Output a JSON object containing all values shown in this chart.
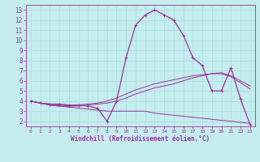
{
  "title": "",
  "xlabel": "Windchill (Refroidissement éolien,°C)",
  "ylabel": "",
  "bg_color": "#c5ecee",
  "line_color": "#993399",
  "xlim": [
    -0.5,
    23.5
  ],
  "ylim": [
    1.5,
    13.5
  ],
  "xticks": [
    0,
    1,
    2,
    3,
    4,
    5,
    6,
    7,
    8,
    9,
    10,
    11,
    12,
    13,
    14,
    15,
    16,
    17,
    18,
    19,
    20,
    21,
    22,
    23
  ],
  "yticks": [
    2,
    3,
    4,
    5,
    6,
    7,
    8,
    9,
    10,
    11,
    12,
    13
  ],
  "grid_color": "#aadddd",
  "line1_x": [
    0,
    1,
    2,
    3,
    4,
    5,
    6,
    7,
    8,
    9,
    10,
    11,
    12,
    13,
    14,
    15,
    16,
    17,
    18,
    19,
    20,
    21,
    22,
    23
  ],
  "line1_y": [
    4.0,
    3.8,
    3.7,
    3.7,
    3.6,
    3.6,
    3.5,
    3.3,
    2.0,
    4.0,
    8.3,
    11.5,
    12.5,
    13.0,
    12.5,
    12.0,
    10.5,
    8.3,
    7.5,
    5.0,
    5.0,
    7.3,
    4.2,
    1.7
  ],
  "line2_x": [
    0,
    1,
    2,
    3,
    4,
    5,
    6,
    7,
    8,
    9,
    10,
    11,
    12,
    13,
    14,
    15,
    16,
    17,
    18,
    19,
    20,
    21,
    22,
    23
  ],
  "line2_y": [
    4.0,
    3.8,
    3.7,
    3.6,
    3.5,
    3.5,
    3.6,
    3.7,
    3.8,
    4.0,
    4.3,
    4.7,
    5.0,
    5.3,
    5.5,
    5.7,
    6.0,
    6.3,
    6.5,
    6.7,
    6.8,
    6.5,
    6.0,
    5.5
  ],
  "line3_x": [
    0,
    1,
    2,
    3,
    4,
    5,
    6,
    7,
    8,
    9,
    10,
    11,
    12,
    13,
    14,
    15,
    16,
    17,
    18,
    19,
    20,
    21,
    22,
    23
  ],
  "line3_y": [
    4.0,
    3.8,
    3.6,
    3.5,
    3.4,
    3.3,
    3.2,
    3.1,
    3.0,
    3.0,
    3.0,
    3.0,
    3.0,
    2.8,
    2.7,
    2.6,
    2.5,
    2.4,
    2.3,
    2.2,
    2.1,
    2.0,
    1.9,
    1.8
  ],
  "line4_x": [
    0,
    1,
    2,
    3,
    4,
    5,
    6,
    7,
    8,
    9,
    10,
    11,
    12,
    13,
    14,
    15,
    16,
    17,
    18,
    19,
    20,
    21,
    22,
    23
  ],
  "line4_y": [
    4.0,
    3.8,
    3.6,
    3.5,
    3.5,
    3.6,
    3.7,
    3.8,
    4.0,
    4.3,
    4.7,
    5.1,
    5.4,
    5.7,
    5.9,
    6.1,
    6.3,
    6.5,
    6.6,
    6.7,
    6.7,
    6.4,
    5.8,
    5.2
  ],
  "xlabel_fontsize": 5.5,
  "tick_fontsize_y": 5.5,
  "tick_fontsize_x": 4.5
}
